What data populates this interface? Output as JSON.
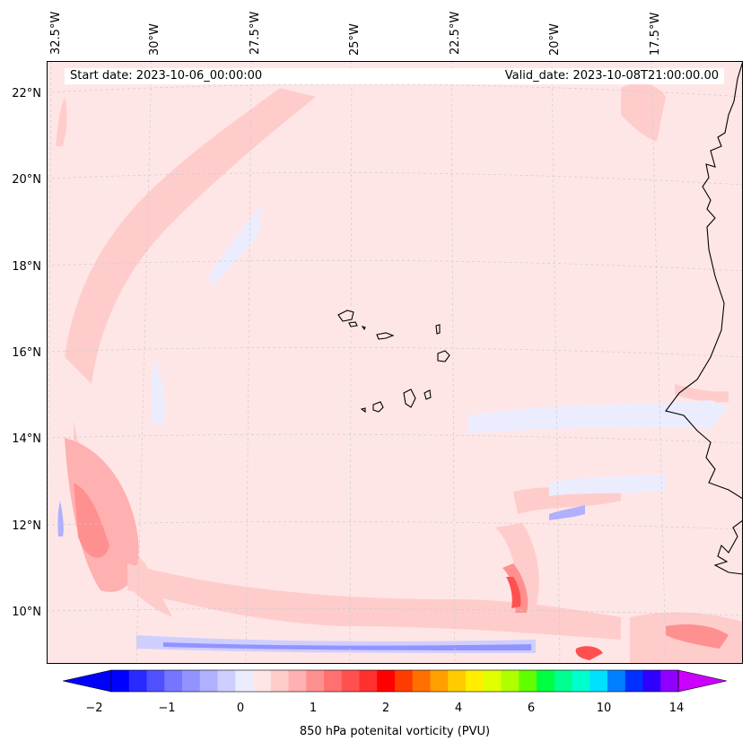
{
  "map": {
    "start_date": "Start date: 2023-10-06_00:00:00",
    "valid_date": "Valid_date: 2023-10-08T21:00:00.00",
    "lon_labels": [
      "32.5°W",
      "30°W",
      "27.5°W",
      "25°W",
      "22.5°W",
      "20°W",
      "17.5°W"
    ],
    "lat_labels": [
      "22°N",
      "20°N",
      "18°N",
      "16°N",
      "14°N",
      "12°N",
      "10°N"
    ],
    "background_color": "#ffe6e6",
    "land_outline_color": "#000000"
  },
  "colorbar": {
    "title": "850 hPa potenital vorticity (PVU)",
    "tick_labels": [
      "−2",
      "−1",
      "0",
      "1",
      "2",
      "4",
      "6",
      "10",
      "14"
    ],
    "colors": [
      "#0000ff",
      "#2a2aff",
      "#5050ff",
      "#7575ff",
      "#9393ff",
      "#b0b0ff",
      "#cfcfff",
      "#ececff",
      "#ffe6e6",
      "#ffcccc",
      "#ffb0b0",
      "#ff9090",
      "#ff7070",
      "#ff5050",
      "#ff3030",
      "#ff0000",
      "#ff3c00",
      "#ff7000",
      "#ffa000",
      "#ffcc00",
      "#ffee00",
      "#e0ff00",
      "#b0ff00",
      "#60ff00",
      "#00ff40",
      "#00ff90",
      "#00ffcc",
      "#00e0ff",
      "#0080ff",
      "#0030ff",
      "#3000ff",
      "#9000ff"
    ],
    "min_arrow_color": "#0000ff",
    "max_arrow_color": "#cc00ff"
  }
}
